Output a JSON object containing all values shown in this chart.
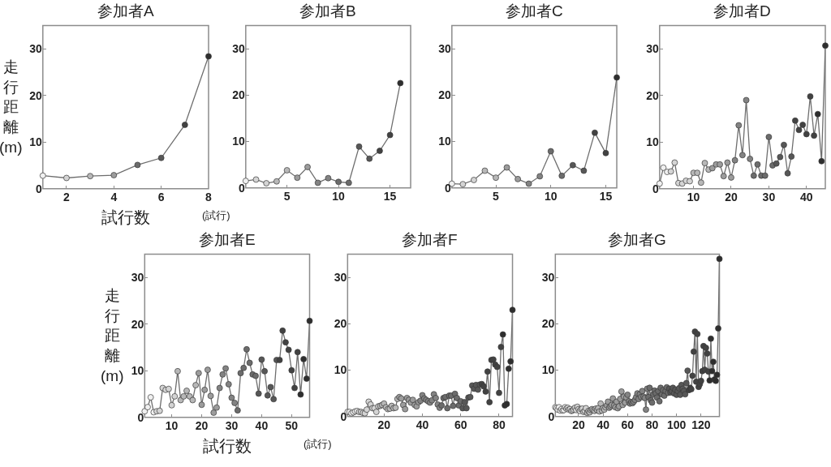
{
  "chart_data": [
    {
      "type": "line",
      "title": "参加者A",
      "xlabel": "試行数",
      "ylabel": "走行距離(m)",
      "annotations": [
        "(試行)"
      ],
      "marker": "circle",
      "line_style": "solid",
      "grid": false,
      "xlim": [
        1,
        8
      ],
      "xticks": [
        2,
        4,
        6,
        8
      ],
      "ylim": [
        0,
        35
      ],
      "yticks": [
        0,
        10,
        20,
        30
      ],
      "x": [
        1,
        2,
        3,
        4,
        5,
        6,
        7,
        8
      ],
      "values": [
        2.8,
        2.3,
        2.7,
        2.9,
        5.1,
        6.6,
        13.7,
        28.4
      ],
      "color": "#6e6e6e",
      "colors": [
        "#f0f0f0",
        "#d4d4d4",
        "#b8b8b8",
        "#9c9c9c",
        "#6c6c6c",
        "#575757",
        "#424242",
        "#2e2e2e"
      ]
    },
    {
      "type": "line",
      "title": "参加者B",
      "marker": "circle",
      "line_style": "solid",
      "grid": false,
      "xlim": [
        1,
        17
      ],
      "xticks": [
        5,
        10,
        15
      ],
      "ylim": [
        0,
        35
      ],
      "yticks": [
        0,
        10,
        20,
        30
      ],
      "x": [
        1,
        2,
        3,
        4,
        5,
        6,
        7,
        8,
        9,
        10,
        11,
        12,
        13,
        14,
        15,
        16
      ],
      "values": [
        1.5,
        1.8,
        1.0,
        1.4,
        3.8,
        2.2,
        4.5,
        1.1,
        2.1,
        1.3,
        1.1,
        8.9,
        6.3,
        8.0,
        11.4,
        22.6
      ],
      "color": "#6e6e6e",
      "colors": [
        "#f0f0f0",
        "#d4d4d4",
        "#d4d4d4",
        "#b8b8b8",
        "#b8b8b8",
        "#9c9c9c",
        "#9c9c9c",
        "#838383",
        "#838383",
        "#6c6c6c",
        "#6c6c6c",
        "#575757",
        "#575757",
        "#424242",
        "#424242",
        "#2e2e2e"
      ]
    },
    {
      "type": "line",
      "title": "参加者C",
      "marker": "circle",
      "line_style": "solid",
      "grid": false,
      "xlim": [
        1,
        16
      ],
      "xticks": [
        5,
        10,
        15
      ],
      "ylim": [
        0,
        35
      ],
      "yticks": [
        0,
        10,
        20,
        30
      ],
      "x": [
        1,
        2,
        3,
        4,
        5,
        6,
        7,
        8,
        9,
        10,
        11,
        12,
        13,
        14,
        15,
        16
      ],
      "values": [
        0.9,
        0.8,
        1.7,
        3.7,
        2.2,
        4.4,
        1.9,
        0.9,
        2.5,
        7.9,
        2.6,
        4.9,
        3.7,
        11.9,
        7.5,
        23.8
      ],
      "color": "#6e6e6e",
      "colors": [
        "#f0f0f0",
        "#d4d4d4",
        "#d4d4d4",
        "#b8b8b8",
        "#b8b8b8",
        "#9c9c9c",
        "#9c9c9c",
        "#838383",
        "#838383",
        "#6c6c6c",
        "#6c6c6c",
        "#575757",
        "#575757",
        "#424242",
        "#424242",
        "#2e2e2e"
      ]
    },
    {
      "type": "line",
      "title": "参加者D",
      "marker": "circle",
      "line_style": "solid",
      "grid": false,
      "xlim": [
        1,
        45
      ],
      "xticks": [
        10,
        20,
        30,
        40
      ],
      "ylim": [
        0,
        35
      ],
      "yticks": [
        0,
        10,
        20,
        30
      ],
      "x": [
        1,
        2,
        3,
        4,
        5,
        6,
        7,
        8,
        9,
        10,
        11,
        12,
        13,
        14,
        15,
        16,
        17,
        18,
        19,
        20,
        21,
        22,
        23,
        24,
        25,
        26,
        27,
        28,
        29,
        30,
        31,
        32,
        33,
        34,
        35,
        36,
        37,
        38,
        39,
        40,
        41,
        42,
        43,
        44,
        45
      ],
      "values": [
        1.1,
        4.5,
        3.6,
        3.7,
        5.6,
        1.2,
        1.1,
        1.7,
        1.6,
        3.4,
        3.4,
        1.3,
        5.5,
        4.1,
        4.4,
        5.2,
        5.2,
        2.7,
        5.6,
        2.4,
        6.1,
        13.6,
        7.2,
        19.0,
        6.4,
        2.8,
        5.2,
        2.8,
        2.8,
        11.1,
        5.0,
        5.4,
        6.8,
        9.4,
        3.3,
        6.9,
        14.6,
        12.6,
        13.7,
        11.7,
        19.8,
        11.4,
        16.0,
        5.9,
        30.7
      ],
      "color": "#6e6e6e",
      "colors": [
        "#f0f0f0",
        "#f0f0f0",
        "#f0f0f0",
        "#d4d4d4",
        "#d4d4d4",
        "#d4d4d4",
        "#d4d4d4",
        "#d4d4d4",
        "#d4d4d4",
        "#b8b8b8",
        "#b8b8b8",
        "#b8b8b8",
        "#b8b8b8",
        "#b8b8b8",
        "#9c9c9c",
        "#9c9c9c",
        "#9c9c9c",
        "#9c9c9c",
        "#9c9c9c",
        "#9c9c9c",
        "#838383",
        "#838383",
        "#838383",
        "#838383",
        "#838383",
        "#6c6c6c",
        "#6c6c6c",
        "#6c6c6c",
        "#6c6c6c",
        "#6c6c6c",
        "#6c6c6c",
        "#575757",
        "#575757",
        "#575757",
        "#575757",
        "#575757",
        "#424242",
        "#424242",
        "#424242",
        "#424242",
        "#424242",
        "#424242",
        "#2e2e2e",
        "#2e2e2e",
        "#2e2e2e"
      ]
    },
    {
      "type": "line",
      "title": "参加者E",
      "xlabel": "試行数",
      "ylabel": "走行距離(m)",
      "annotations": [
        "(試行)"
      ],
      "marker": "circle",
      "line_style": "solid",
      "grid": false,
      "xlim": [
        1,
        56
      ],
      "xticks": [
        10,
        20,
        30,
        40,
        50
      ],
      "ylim": [
        0,
        35
      ],
      "yticks": [
        0,
        10,
        20,
        30
      ],
      "x": [
        1,
        2,
        3,
        4,
        5,
        6,
        7,
        8,
        9,
        10,
        11,
        12,
        13,
        14,
        15,
        16,
        17,
        18,
        19,
        20,
        21,
        22,
        23,
        24,
        25,
        26,
        27,
        28,
        29,
        30,
        31,
        32,
        33,
        34,
        35,
        36,
        37,
        38,
        39,
        40,
        41,
        42,
        43,
        44,
        45,
        46,
        47,
        48,
        49,
        50,
        51,
        52,
        53,
        54,
        55,
        56
      ],
      "values": [
        1.3,
        2.2,
        4.3,
        1.1,
        1.3,
        1.4,
        6.3,
        5.9,
        6.1,
        2.6,
        4.5,
        9.9,
        3.7,
        4.5,
        5.7,
        4.5,
        3.7,
        6.9,
        9.5,
        2.7,
        5.9,
        10.2,
        4.6,
        1.0,
        2.1,
        6.3,
        9.2,
        10.5,
        7.1,
        4.2,
        3.1,
        1.5,
        9.5,
        10.6,
        14.6,
        11.7,
        9.2,
        8.9,
        5.1,
        12.4,
        9.9,
        4.7,
        6.5,
        3.9,
        12.3,
        12.3,
        18.6,
        16.1,
        14.5,
        10.1,
        6.3,
        14.0,
        4.9,
        12.5,
        8.3,
        20.7
      ],
      "color": "#6e6e6e",
      "colors": [
        "#f0f0f0",
        "#f0f0f0",
        "#f0f0f0",
        "#f0f0f0",
        "#d4d4d4",
        "#d4d4d4",
        "#d4d4d4",
        "#d4d4d4",
        "#d4d4d4",
        "#d4d4d4",
        "#d4d4d4",
        "#b8b8b8",
        "#b8b8b8",
        "#b8b8b8",
        "#b8b8b8",
        "#b8b8b8",
        "#b8b8b8",
        "#b8b8b8",
        "#9c9c9c",
        "#9c9c9c",
        "#9c9c9c",
        "#9c9c9c",
        "#9c9c9c",
        "#9c9c9c",
        "#9c9c9c",
        "#838383",
        "#838383",
        "#838383",
        "#838383",
        "#838383",
        "#838383",
        "#6c6c6c",
        "#6c6c6c",
        "#6c6c6c",
        "#6c6c6c",
        "#6c6c6c",
        "#6c6c6c",
        "#6c6c6c",
        "#575757",
        "#575757",
        "#575757",
        "#575757",
        "#575757",
        "#575757",
        "#575757",
        "#424242",
        "#424242",
        "#424242",
        "#424242",
        "#424242",
        "#424242",
        "#424242",
        "#2e2e2e",
        "#2e2e2e",
        "#2e2e2e",
        "#2e2e2e"
      ]
    },
    {
      "type": "line",
      "title": "参加者F",
      "marker": "circle",
      "line_style": "solid",
      "grid": false,
      "xlim": [
        1,
        87
      ],
      "xticks": [
        20,
        40,
        60,
        80
      ],
      "ylim": [
        0,
        35
      ],
      "yticks": [
        0,
        10,
        20,
        30
      ],
      "x": [
        1,
        2,
        3,
        4,
        5,
        6,
        7,
        8,
        9,
        10,
        11,
        12,
        13,
        14,
        15,
        16,
        17,
        18,
        19,
        20,
        21,
        22,
        23,
        24,
        25,
        26,
        27,
        28,
        29,
        30,
        31,
        32,
        33,
        34,
        35,
        36,
        37,
        38,
        39,
        40,
        41,
        42,
        43,
        44,
        45,
        46,
        47,
        48,
        49,
        50,
        51,
        52,
        53,
        54,
        55,
        56,
        57,
        58,
        59,
        60,
        61,
        62,
        63,
        64,
        65,
        66,
        67,
        68,
        69,
        70,
        71,
        72,
        73,
        74,
        75,
        76,
        77,
        78,
        79,
        80,
        81,
        82,
        83,
        84,
        85,
        86,
        87
      ],
      "values": [
        1.0,
        1.0,
        0.7,
        0.9,
        1.1,
        1.2,
        1.0,
        1.0,
        0.8,
        0.7,
        1.5,
        3.2,
        2.6,
        1.8,
        1.8,
        1.0,
        2.2,
        2.3,
        2.5,
        2.8,
        2.0,
        1.6,
        1.7,
        2.3,
        1.8,
        1.9,
        3.8,
        4.2,
        3.9,
        2.5,
        1.6,
        4.0,
        3.6,
        3.0,
        3.6,
        2.5,
        2.2,
        3.1,
        3.4,
        4.6,
        3.9,
        3.6,
        3.3,
        3.0,
        3.5,
        4.8,
        4.0,
        2.6,
        1.9,
        2.4,
        4.0,
        4.2,
        1.8,
        4.5,
        4.5,
        2.3,
        4.9,
        4.0,
        2.4,
        3.3,
        1.8,
        3.1,
        1.8,
        4.1,
        4.2,
        6.7,
        6.0,
        6.8,
        5.8,
        6.9,
        7.0,
        6.5,
        5.4,
        9.7,
        3.1,
        12.2,
        12.3,
        11.2,
        10.7,
        5.1,
        15.0,
        17.7,
        2.4,
        2.7,
        10.3,
        11.9,
        23.0
      ],
      "color": "#6e6e6e",
      "colors": [
        "#f0f0f0",
        "#f0f0f0",
        "#f0f0f0",
        "#f0f0f0",
        "#f0f0f0",
        "#f0f0f0",
        "#d4d4d4",
        "#d4d4d4",
        "#d4d4d4",
        "#d4d4d4",
        "#d4d4d4",
        "#d4d4d4",
        "#d4d4d4",
        "#d4d4d4",
        "#d4d4d4",
        "#d4d4d4",
        "#d4d4d4",
        "#b8b8b8",
        "#b8b8b8",
        "#b8b8b8",
        "#b8b8b8",
        "#b8b8b8",
        "#b8b8b8",
        "#b8b8b8",
        "#b8b8b8",
        "#b8b8b8",
        "#b8b8b8",
        "#9c9c9c",
        "#9c9c9c",
        "#9c9c9c",
        "#9c9c9c",
        "#9c9c9c",
        "#9c9c9c",
        "#9c9c9c",
        "#9c9c9c",
        "#9c9c9c",
        "#9c9c9c",
        "#9c9c9c",
        "#838383",
        "#838383",
        "#838383",
        "#838383",
        "#838383",
        "#838383",
        "#838383",
        "#838383",
        "#838383",
        "#838383",
        "#838383",
        "#6c6c6c",
        "#6c6c6c",
        "#6c6c6c",
        "#6c6c6c",
        "#6c6c6c",
        "#6c6c6c",
        "#6c6c6c",
        "#6c6c6c",
        "#6c6c6c",
        "#6c6c6c",
        "#6c6c6c",
        "#575757",
        "#575757",
        "#575757",
        "#575757",
        "#575757",
        "#575757",
        "#575757",
        "#575757",
        "#575757",
        "#575757",
        "#424242",
        "#424242",
        "#424242",
        "#424242",
        "#424242",
        "#424242",
        "#424242",
        "#424242",
        "#424242",
        "#424242",
        "#424242",
        "#2e2e2e",
        "#2e2e2e",
        "#2e2e2e",
        "#2e2e2e",
        "#2e2e2e",
        "#2e2e2e"
      ]
    },
    {
      "type": "line",
      "title": "参加者G",
      "marker": "circle",
      "line_style": "solid",
      "grid": false,
      "xlim": [
        1,
        135
      ],
      "xticks": [
        20,
        40,
        60,
        80,
        100,
        120
      ],
      "ylim": [
        0,
        35
      ],
      "yticks": [
        0,
        10,
        20,
        30
      ],
      "x": [
        1,
        2,
        3,
        4,
        5,
        6,
        7,
        8,
        9,
        10,
        11,
        12,
        13,
        14,
        15,
        16,
        17,
        18,
        19,
        20,
        21,
        22,
        23,
        24,
        25,
        26,
        27,
        28,
        29,
        30,
        31,
        32,
        33,
        34,
        35,
        36,
        37,
        38,
        39,
        40,
        41,
        42,
        43,
        44,
        45,
        46,
        47,
        48,
        49,
        50,
        51,
        52,
        53,
        54,
        55,
        56,
        57,
        58,
        59,
        60,
        61,
        62,
        63,
        64,
        65,
        66,
        67,
        68,
        69,
        70,
        71,
        72,
        73,
        74,
        75,
        76,
        77,
        78,
        79,
        80,
        81,
        82,
        83,
        84,
        85,
        86,
        87,
        88,
        89,
        90,
        91,
        92,
        93,
        94,
        95,
        96,
        97,
        98,
        99,
        100,
        101,
        102,
        103,
        104,
        105,
        106,
        107,
        108,
        109,
        110,
        111,
        112,
        113,
        114,
        115,
        116,
        117,
        118,
        119,
        120,
        121,
        122,
        123,
        124,
        125,
        126,
        127,
        128,
        129,
        130,
        131,
        132,
        133,
        134,
        135
      ],
      "values": [
        2.0,
        1.8,
        1.5,
        2.0,
        1.3,
        1.6,
        1.3,
        1.4,
        2.0,
        1.7,
        1.9,
        1.5,
        1.6,
        1.2,
        1.3,
        1.5,
        1.9,
        1.4,
        2.1,
        1.6,
        1.2,
        1.6,
        1.7,
        1.0,
        1.2,
        1.8,
        0.8,
        1.2,
        0.9,
        1.4,
        1.6,
        1.4,
        1.2,
        1.7,
        1.4,
        1.8,
        1.1,
        2.8,
        1.3,
        1.8,
        1.5,
        2.0,
        2.4,
        3.2,
        1.9,
        2.2,
        2.5,
        3.9,
        2.4,
        2.0,
        3.2,
        1.8,
        2.2,
        3.8,
        5.4,
        2.5,
        4.3,
        3.0,
        4.1,
        4.7,
        3.3,
        2.8,
        3.1,
        2.9,
        3.2,
        3.6,
        4.2,
        5.0,
        3.8,
        4.8,
        4.2,
        5.5,
        4.3,
        4.0,
        1.5,
        6.0,
        4.2,
        6.2,
        3.5,
        3.0,
        4.8,
        5.6,
        5.0,
        4.1,
        5.5,
        3.3,
        6.2,
        4.8,
        5.7,
        4.5,
        5.5,
        6.3,
        5.1,
        6.0,
        5.2,
        5.5,
        6.2,
        5.0,
        5.8,
        4.7,
        5.5,
        6.1,
        4.7,
        6.8,
        6.0,
        5.5,
        4.8,
        7.2,
        9.9,
        5.7,
        6.2,
        5.9,
        8.8,
        14.0,
        18.3,
        7.5,
        17.8,
        6.4,
        7.0,
        7.7,
        9.8,
        15.2,
        10.1,
        14.8,
        13.6,
        9.7,
        7.8,
        16.8,
        9.8,
        11.8,
        8.0,
        7.7,
        9.0,
        19.0,
        34.0
      ],
      "color": "#6e6e6e",
      "colors": [
        "#f0f0f0",
        "#f0f0f0",
        "#f0f0f0",
        "#f0f0f0",
        "#f0f0f0",
        "#f0f0f0",
        "#f0f0f0",
        "#f0f0f0",
        "#f0f0f0",
        "#d4d4d4",
        "#d4d4d4",
        "#d4d4d4",
        "#d4d4d4",
        "#d4d4d4",
        "#d4d4d4",
        "#d4d4d4",
        "#d4d4d4",
        "#d4d4d4",
        "#d4d4d4",
        "#d4d4d4",
        "#d4d4d4",
        "#d4d4d4",
        "#d4d4d4",
        "#d4d4d4",
        "#d4d4d4",
        "#d4d4d4",
        "#b8b8b8",
        "#b8b8b8",
        "#b8b8b8",
        "#b8b8b8",
        "#b8b8b8",
        "#b8b8b8",
        "#b8b8b8",
        "#b8b8b8",
        "#b8b8b8",
        "#b8b8b8",
        "#b8b8b8",
        "#b8b8b8",
        "#b8b8b8",
        "#b8b8b8",
        "#b8b8b8",
        "#b8b8b8",
        "#9c9c9c",
        "#9c9c9c",
        "#9c9c9c",
        "#9c9c9c",
        "#9c9c9c",
        "#9c9c9c",
        "#9c9c9c",
        "#9c9c9c",
        "#9c9c9c",
        "#9c9c9c",
        "#9c9c9c",
        "#9c9c9c",
        "#9c9c9c",
        "#9c9c9c",
        "#9c9c9c",
        "#9c9c9c",
        "#9c9c9c",
        "#838383",
        "#838383",
        "#838383",
        "#838383",
        "#838383",
        "#838383",
        "#838383",
        "#838383",
        "#838383",
        "#838383",
        "#838383",
        "#838383",
        "#838383",
        "#838383",
        "#838383",
        "#838383",
        "#838383",
        "#6c6c6c",
        "#6c6c6c",
        "#6c6c6c",
        "#6c6c6c",
        "#6c6c6c",
        "#6c6c6c",
        "#6c6c6c",
        "#6c6c6c",
        "#6c6c6c",
        "#6c6c6c",
        "#6c6c6c",
        "#6c6c6c",
        "#6c6c6c",
        "#6c6c6c",
        "#6c6c6c",
        "#6c6c6c",
        "#6c6c6c",
        "#575757",
        "#575757",
        "#575757",
        "#575757",
        "#575757",
        "#575757",
        "#575757",
        "#575757",
        "#575757",
        "#575757",
        "#575757",
        "#575757",
        "#575757",
        "#575757",
        "#575757",
        "#575757",
        "#424242",
        "#424242",
        "#424242",
        "#424242",
        "#424242",
        "#424242",
        "#424242",
        "#424242",
        "#424242",
        "#424242",
        "#424242",
        "#424242",
        "#424242",
        "#424242",
        "#424242",
        "#424242",
        "#424242",
        "#2e2e2e",
        "#2e2e2e",
        "#2e2e2e",
        "#2e2e2e",
        "#2e2e2e",
        "#2e2e2e",
        "#2e2e2e",
        "#2e2e2e",
        "#2e2e2e"
      ]
    }
  ]
}
